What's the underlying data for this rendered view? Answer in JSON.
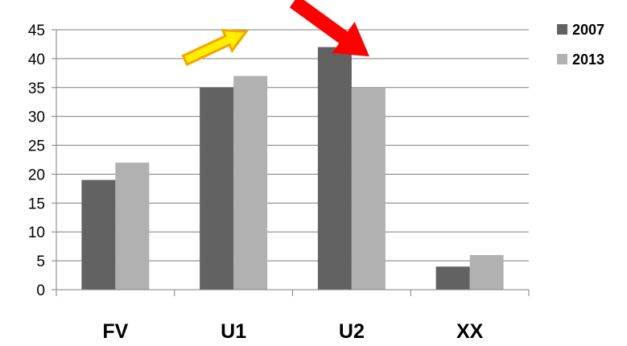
{
  "chart_data": {
    "type": "bar",
    "categories": [
      "FV",
      "U1",
      "U2",
      "XX"
    ],
    "series": [
      {
        "name": "2007",
        "values": [
          19,
          35,
          42,
          4
        ],
        "color": "#626262"
      },
      {
        "name": "2013",
        "values": [
          22,
          37,
          35,
          6
        ],
        "color": "#b1b1b1"
      }
    ],
    "ylim": [
      0,
      45
    ],
    "yticks": [
      "0",
      "5",
      "10",
      "15",
      "20",
      "25",
      "30",
      "35",
      "40",
      "45"
    ],
    "grid": true,
    "legend_position": "top-right",
    "annotations": [
      {
        "kind": "arrow",
        "color": "#ffee00",
        "outline": "#f5a400",
        "pointing": "up-right",
        "near_category": "U1"
      },
      {
        "kind": "arrow",
        "color": "#ff0000",
        "pointing": "down-right",
        "near_category": "U2"
      }
    ]
  }
}
